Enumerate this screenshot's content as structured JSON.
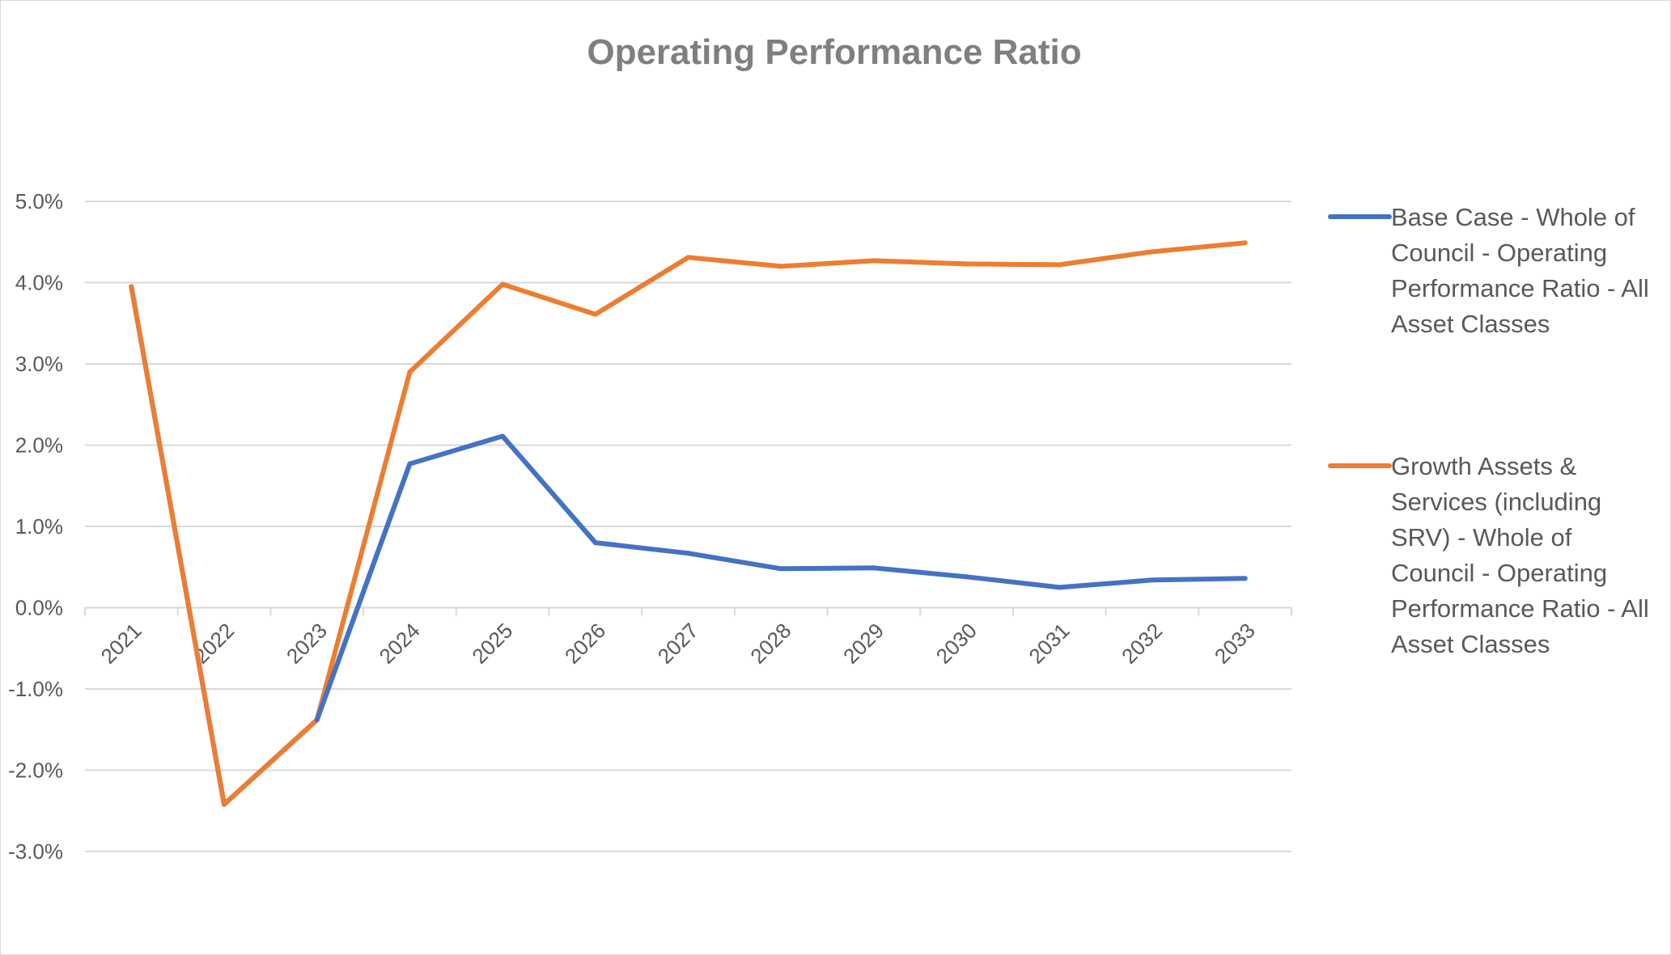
{
  "chart_data": {
    "type": "line",
    "title": "Operating Performance Ratio",
    "xlabel": "",
    "ylabel": "",
    "categories": [
      "2021",
      "2022",
      "2023",
      "2024",
      "2025",
      "2026",
      "2027",
      "2028",
      "2029",
      "2030",
      "2031",
      "2032",
      "2033"
    ],
    "y_tick_labels": [
      "5.0%",
      "4.0%",
      "3.0%",
      "2.0%",
      "1.0%",
      "0.0%",
      "-1.0%",
      "-2.0%",
      "-3.0%"
    ],
    "ylim": [
      -3.0,
      5.0
    ],
    "grid": true,
    "legend_position": "right",
    "series": [
      {
        "name": "Base Case - Whole of Council - Operating Performance Ratio - All Asset Classes",
        "legend_lines": [
          "Base Case - Whole of",
          "Council - Operating",
          "Performance Ratio - All",
          "Asset Classes"
        ],
        "color": "#4472c4",
        "values": [
          3.95,
          -2.42,
          -1.38,
          1.77,
          2.11,
          0.8,
          0.67,
          0.48,
          0.49,
          0.38,
          0.25,
          0.34,
          0.36
        ]
      },
      {
        "name": "Growth Assets & Services (including SRV) - Whole of Council - Operating Performance Ratio - All Asset Classes",
        "legend_lines": [
          "Growth Assets &",
          "Services (including",
          "SRV) - Whole of",
          "Council - Operating",
          "Performance Ratio - All",
          "Asset Classes"
        ],
        "color": "#ed7d31",
        "values": [
          3.95,
          -2.42,
          -1.38,
          2.9,
          3.98,
          3.61,
          4.31,
          4.2,
          4.27,
          4.23,
          4.22,
          4.38,
          4.49
        ]
      }
    ]
  }
}
